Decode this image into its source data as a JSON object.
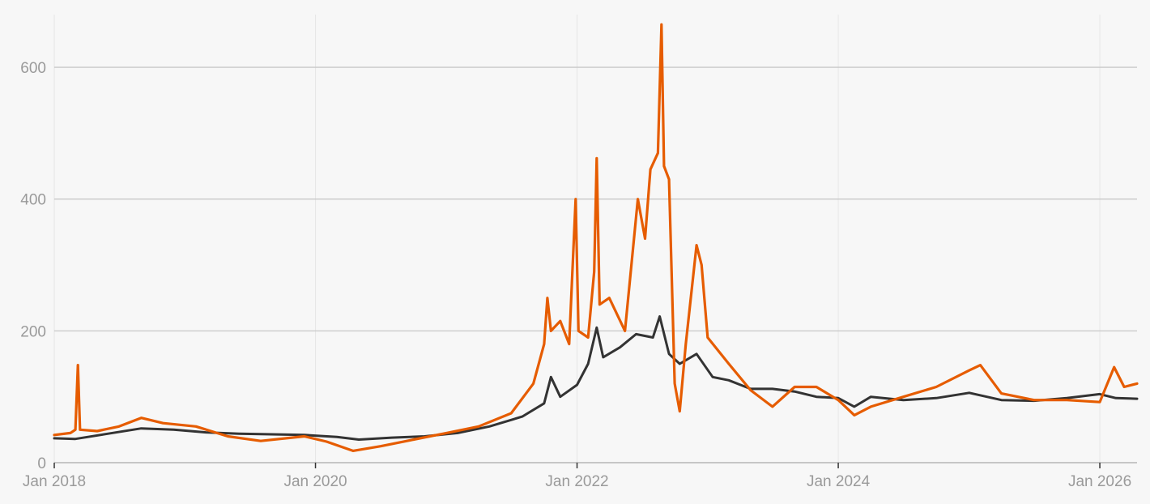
{
  "chart_data": {
    "type": "line",
    "title": "",
    "xlabel": "",
    "ylabel": "",
    "xlim": [
      "2018-01-01",
      "2026-04-15"
    ],
    "ylim": [
      0,
      680
    ],
    "grid": {
      "horizontal": true,
      "vertical": true
    },
    "legend": "none",
    "y_ticks": [
      0,
      200,
      400,
      600
    ],
    "y_tick_labels": [
      "0",
      "200",
      "400",
      "600"
    ],
    "x_ticks": [
      "2018-01-01",
      "2020-01-01",
      "2022-01-01",
      "2024-01-01",
      "2026-01-01"
    ],
    "x_tick_labels": [
      "Jan 2018",
      "Jan 2020",
      "Jan 2022",
      "Jan 2024",
      "Jan 2026"
    ],
    "series": [
      {
        "color": "#333333",
        "points": [
          [
            "2018-01-01",
            37
          ],
          [
            "2018-03-01",
            36
          ],
          [
            "2018-06-01",
            44
          ],
          [
            "2018-09-01",
            52
          ],
          [
            "2018-12-01",
            50
          ],
          [
            "2019-03-01",
            46
          ],
          [
            "2019-06-01",
            44
          ],
          [
            "2019-09-01",
            43
          ],
          [
            "2019-12-01",
            42
          ],
          [
            "2020-03-01",
            39
          ],
          [
            "2020-05-01",
            35
          ],
          [
            "2020-08-01",
            38
          ],
          [
            "2020-11-01",
            40
          ],
          [
            "2021-02-01",
            45
          ],
          [
            "2021-05-01",
            55
          ],
          [
            "2021-08-01",
            70
          ],
          [
            "2021-10-01",
            90
          ],
          [
            "2021-10-20",
            130
          ],
          [
            "2021-11-15",
            100
          ],
          [
            "2022-01-01",
            118
          ],
          [
            "2022-02-01",
            150
          ],
          [
            "2022-02-25",
            205
          ],
          [
            "2022-03-15",
            160
          ],
          [
            "2022-05-01",
            175
          ],
          [
            "2022-06-15",
            195
          ],
          [
            "2022-08-01",
            190
          ],
          [
            "2022-08-20",
            222
          ],
          [
            "2022-09-15",
            165
          ],
          [
            "2022-10-15",
            150
          ],
          [
            "2022-12-01",
            165
          ],
          [
            "2023-01-15",
            130
          ],
          [
            "2023-03-01",
            125
          ],
          [
            "2023-05-01",
            112
          ],
          [
            "2023-07-01",
            112
          ],
          [
            "2023-09-01",
            108
          ],
          [
            "2023-11-01",
            100
          ],
          [
            "2024-01-01",
            98
          ],
          [
            "2024-02-15",
            85
          ],
          [
            "2024-04-01",
            100
          ],
          [
            "2024-07-01",
            95
          ],
          [
            "2024-10-01",
            98
          ],
          [
            "2025-01-01",
            106
          ],
          [
            "2025-04-01",
            95
          ],
          [
            "2025-07-01",
            94
          ],
          [
            "2025-10-01",
            98
          ],
          [
            "2026-01-01",
            104
          ],
          [
            "2026-02-15",
            98
          ],
          [
            "2026-04-15",
            97
          ]
        ]
      },
      {
        "color": "#e65c00",
        "points": [
          [
            "2018-01-01",
            42
          ],
          [
            "2018-02-15",
            45
          ],
          [
            "2018-03-01",
            50
          ],
          [
            "2018-03-08",
            148
          ],
          [
            "2018-03-14",
            50
          ],
          [
            "2018-05-01",
            48
          ],
          [
            "2018-07-01",
            55
          ],
          [
            "2018-09-01",
            68
          ],
          [
            "2018-11-01",
            60
          ],
          [
            "2019-02-01",
            55
          ],
          [
            "2019-05-01",
            40
          ],
          [
            "2019-08-01",
            33
          ],
          [
            "2019-12-01",
            40
          ],
          [
            "2020-02-01",
            32
          ],
          [
            "2020-04-15",
            18
          ],
          [
            "2020-07-01",
            25
          ],
          [
            "2020-10-01",
            35
          ],
          [
            "2021-01-01",
            45
          ],
          [
            "2021-04-01",
            55
          ],
          [
            "2021-07-01",
            75
          ],
          [
            "2021-09-01",
            120
          ],
          [
            "2021-10-01",
            180
          ],
          [
            "2021-10-10",
            250
          ],
          [
            "2021-10-20",
            200
          ],
          [
            "2021-11-15",
            215
          ],
          [
            "2021-12-10",
            180
          ],
          [
            "2021-12-28",
            400
          ],
          [
            "2022-01-05",
            200
          ],
          [
            "2022-02-01",
            190
          ],
          [
            "2022-02-18",
            290
          ],
          [
            "2022-02-25",
            462
          ],
          [
            "2022-03-05",
            240
          ],
          [
            "2022-04-01",
            250
          ],
          [
            "2022-05-15",
            200
          ],
          [
            "2022-06-20",
            400
          ],
          [
            "2022-07-10",
            340
          ],
          [
            "2022-07-25",
            445
          ],
          [
            "2022-08-15",
            470
          ],
          [
            "2022-08-25",
            665
          ],
          [
            "2022-09-01",
            450
          ],
          [
            "2022-09-15",
            430
          ],
          [
            "2022-10-01",
            120
          ],
          [
            "2022-10-15",
            78
          ],
          [
            "2022-11-01",
            180
          ],
          [
            "2022-12-01",
            330
          ],
          [
            "2022-12-15",
            300
          ],
          [
            "2023-01-01",
            190
          ],
          [
            "2023-03-01",
            150
          ],
          [
            "2023-05-01",
            110
          ],
          [
            "2023-07-01",
            85
          ],
          [
            "2023-09-01",
            115
          ],
          [
            "2023-11-01",
            115
          ],
          [
            "2024-01-01",
            95
          ],
          [
            "2024-02-15",
            72
          ],
          [
            "2024-04-01",
            85
          ],
          [
            "2024-07-01",
            100
          ],
          [
            "2024-10-01",
            115
          ],
          [
            "2025-01-01",
            140
          ],
          [
            "2025-02-01",
            148
          ],
          [
            "2025-04-01",
            105
          ],
          [
            "2025-07-01",
            95
          ],
          [
            "2025-10-01",
            95
          ],
          [
            "2026-01-01",
            92
          ],
          [
            "2026-02-10",
            145
          ],
          [
            "2026-03-10",
            115
          ],
          [
            "2026-04-15",
            120
          ]
        ]
      }
    ]
  }
}
